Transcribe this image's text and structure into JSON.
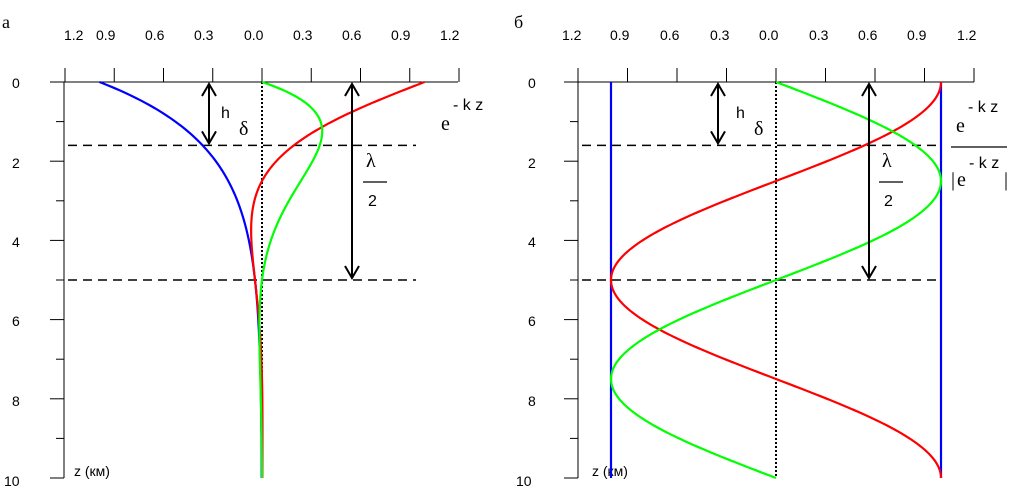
{
  "chart_data": [
    {
      "panel_label": "а",
      "type": "line",
      "x_ticks": [
        "1.2",
        "0.9",
        "0.6",
        "0.3",
        "0.0",
        "0.3",
        "0.6",
        "0.9",
        "1.2"
      ],
      "y_ticks": [
        "0",
        "2",
        "4",
        "6",
        "8",
        "10"
      ],
      "ylabel": "z (км)",
      "xlim": [
        -1.2,
        1.2
      ],
      "ylim": [
        0,
        10
      ],
      "y_inverted": true,
      "skin_depth_km": 1.6,
      "half_wavelength_depth_km": 5.0,
      "series": [
        {
          "color": "#0000ff",
          "kind": "-envelope",
          "z0": 0.0,
          "amp": 0.99,
          "decay_km": 1.59
        },
        {
          "color": "#ff0000",
          "kind": "cos",
          "z0": 0.0,
          "amp": 0.99,
          "decay_km": 1.59
        },
        {
          "color": "#00ff00",
          "kind": "sin",
          "z0": 0.0,
          "amp": 0.99,
          "decay_km": 1.59
        }
      ],
      "annotations": {
        "h_label": "h",
        "delta_label": "δ",
        "lambda_label": "λ",
        "two_label": "2",
        "exp_base": "e",
        "exp_power": "- k z"
      }
    },
    {
      "panel_label": "б",
      "type": "line",
      "x_ticks": [
        "1.2",
        "0.9",
        "0.6",
        "0.3",
        "0.0",
        "0.3",
        "0.6",
        "0.9",
        "1.2"
      ],
      "y_ticks": [
        "0",
        "2",
        "4",
        "6",
        "8",
        "10"
      ],
      "ylabel": "z (км)",
      "xlim": [
        -1.2,
        1.2
      ],
      "ylim": [
        0,
        10
      ],
      "y_inverted": true,
      "skin_depth_km": 1.6,
      "half_wavelength_depth_km": 5.0,
      "series": [
        {
          "color": "#0000ff",
          "kind": "const",
          "value": -1.0
        },
        {
          "color": "#0000ff",
          "kind": "const",
          "value": 1.0
        },
        {
          "color": "#ff0000",
          "kind": "cos_norm",
          "amp": 1.0,
          "period_km": 10.0
        },
        {
          "color": "#00ff00",
          "kind": "sin_norm",
          "amp": 1.0,
          "period_km": 10.0
        }
      ],
      "annotations": {
        "h_label": "h",
        "delta_label": "δ",
        "lambda_label": "λ",
        "two_label": "2",
        "exp_base": "e",
        "exp_power": "- k z",
        "bar": "|"
      }
    }
  ]
}
